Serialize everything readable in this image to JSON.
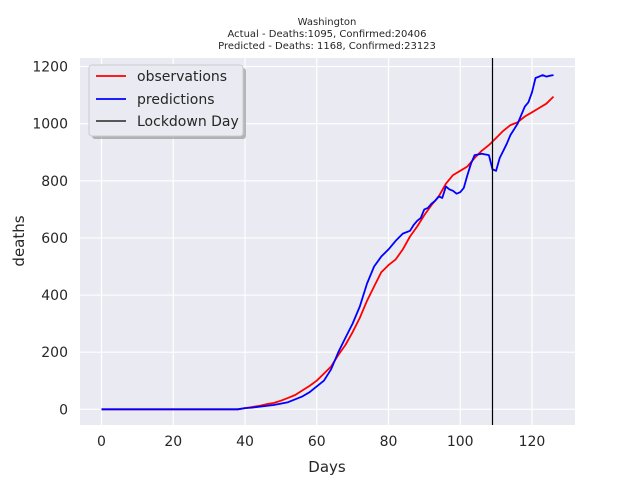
{
  "chart_data": {
    "type": "line",
    "title": "Washington",
    "subtitle_lines": [
      "Actual - Deaths:1095, Confirmed:20406",
      "Predicted - Deaths: 1168, Confirmed:23123"
    ],
    "xlabel": "Days",
    "ylabel": "deaths",
    "xlim": [
      -6,
      132
    ],
    "ylim": [
      -55,
      1230
    ],
    "xticks": [
      0,
      20,
      40,
      60,
      80,
      100,
      120
    ],
    "yticks": [
      0,
      200,
      400,
      600,
      800,
      1000,
      1200
    ],
    "grid": true,
    "legend_position": "top-left",
    "vline": {
      "label": "Lockdown Day",
      "x": 109,
      "color": "#000000"
    },
    "series": [
      {
        "name": "observations",
        "color": "#ff0000",
        "x": [
          0,
          10,
          20,
          30,
          38,
          40,
          42,
          44,
          46,
          48,
          50,
          52,
          54,
          56,
          58,
          60,
          62,
          64,
          66,
          68,
          70,
          72,
          74,
          76,
          78,
          80,
          82,
          84,
          86,
          88,
          90,
          92,
          94,
          96,
          98,
          100,
          102,
          104,
          106,
          108,
          110,
          112,
          114,
          116,
          118,
          120,
          122,
          124,
          126
        ],
        "y": [
          0,
          0,
          0,
          0,
          0,
          4,
          8,
          12,
          18,
          22,
          30,
          40,
          50,
          66,
          82,
          100,
          125,
          150,
          190,
          225,
          270,
          320,
          380,
          430,
          480,
          505,
          525,
          560,
          605,
          640,
          680,
          715,
          745,
          790,
          820,
          835,
          850,
          880,
          905,
          925,
          950,
          975,
          995,
          1005,
          1025,
          1040,
          1055,
          1070,
          1095
        ]
      },
      {
        "name": "predictions",
        "color": "#0000ff",
        "x": [
          0,
          10,
          20,
          30,
          38,
          40,
          42,
          44,
          46,
          48,
          50,
          52,
          54,
          56,
          58,
          60,
          62,
          64,
          66,
          68,
          70,
          72,
          74,
          76,
          78,
          80,
          82,
          84,
          86,
          87,
          88,
          89,
          90,
          91,
          92,
          93,
          94,
          95,
          96,
          97,
          98,
          99,
          100,
          101,
          102,
          103,
          104,
          106,
          108,
          109,
          110,
          111,
          112,
          113,
          114,
          116,
          117,
          118,
          119,
          120,
          121,
          122,
          123,
          124,
          125,
          126
        ],
        "y": [
          0,
          0,
          0,
          0,
          0,
          4,
          6,
          9,
          12,
          15,
          20,
          25,
          35,
          45,
          60,
          80,
          100,
          140,
          200,
          250,
          300,
          360,
          440,
          500,
          535,
          560,
          590,
          615,
          625,
          645,
          660,
          670,
          700,
          705,
          720,
          730,
          745,
          740,
          780,
          770,
          765,
          755,
          760,
          775,
          820,
          860,
          890,
          895,
          890,
          840,
          835,
          880,
          905,
          930,
          960,
          1000,
          1030,
          1060,
          1075,
          1110,
          1160,
          1165,
          1170,
          1165,
          1168,
          1170
        ]
      }
    ]
  }
}
